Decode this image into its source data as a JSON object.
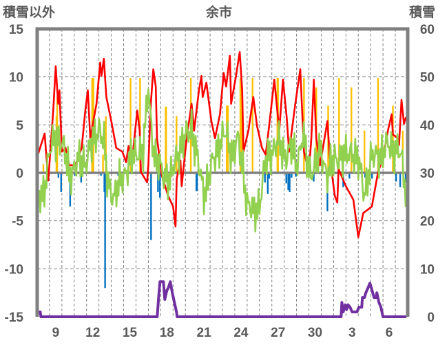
{
  "chart_data": {
    "type": "line",
    "title": "余市",
    "ylabel_left": "積雪以外",
    "ylabel_right": "積雪",
    "ylim_left": [
      -15,
      15
    ],
    "ylim_right": [
      0,
      60
    ],
    "yticks_left": [
      "15",
      "10",
      "5",
      "0",
      "-5",
      "-10",
      "-15"
    ],
    "yticks_left_values": [
      15,
      10,
      5,
      0,
      -5,
      -10,
      -15
    ],
    "yticks_right": [
      "60",
      "50",
      "40",
      "30",
      "20",
      "10",
      "0"
    ],
    "yticks_right_values": [
      60,
      50,
      40,
      30,
      20,
      10,
      0
    ],
    "x_days_span": 30,
    "xticks": [
      {
        "label": "9",
        "day": 1
      },
      {
        "label": "12",
        "day": 4
      },
      {
        "label": "15",
        "day": 7
      },
      {
        "label": "18",
        "day": 10
      },
      {
        "label": "21",
        "day": 13
      },
      {
        "label": "24",
        "day": 16
      },
      {
        "label": "27",
        "day": 19
      },
      {
        "label": "30",
        "day": 22
      },
      {
        "label": "3",
        "day": 25
      },
      {
        "label": "6",
        "day": 28
      }
    ],
    "grid": true,
    "colors": {
      "red": "#ff0000",
      "green": "#92d050",
      "yellow": "#ffc000",
      "blue": "#0070c0",
      "purple": "#7030a0",
      "axis": "#808080",
      "text": "#595959"
    },
    "series": [
      {
        "key": "red",
        "type": "line",
        "axis": "left",
        "color": "#ff0000",
        "points": [
          [
            0.06,
            1.9
          ],
          [
            0.6,
            4.1
          ],
          [
            0.9,
            -0.8
          ],
          [
            1.3,
            6.5
          ],
          [
            1.5,
            11.1
          ],
          [
            1.7,
            7.2
          ],
          [
            1.8,
            8.6
          ],
          [
            2.0,
            2.2
          ],
          [
            2.3,
            2.6
          ],
          [
            2.6,
            0.8
          ],
          [
            3.1,
            0.8
          ],
          [
            3.6,
            2.6
          ],
          [
            3.9,
            6.5
          ],
          [
            4.1,
            8.6
          ],
          [
            4.3,
            3.6
          ],
          [
            4.8,
            7.2
          ],
          [
            5.1,
            11.5
          ],
          [
            5.2,
            10.1
          ],
          [
            5.4,
            11.9
          ],
          [
            5.6,
            7.9
          ],
          [
            6.0,
            5.4
          ],
          [
            6.4,
            2.6
          ],
          [
            6.9,
            2.2
          ],
          [
            7.2,
            1.1
          ],
          [
            7.4,
            2.8
          ],
          [
            7.7,
            1.5
          ],
          [
            8.1,
            6.5
          ],
          [
            8.3,
            4.4
          ],
          [
            8.4,
            0.1
          ],
          [
            8.9,
            -1.0
          ],
          [
            9.0,
            0.8
          ],
          [
            9.2,
            7.2
          ],
          [
            9.4,
            10.8
          ],
          [
            9.6,
            9.0
          ],
          [
            9.7,
            3.6
          ],
          [
            10.1,
            -0.3
          ],
          [
            10.6,
            -2.4
          ],
          [
            11.0,
            -3.5
          ],
          [
            11.2,
            -5.6
          ],
          [
            11.3,
            -0.6
          ],
          [
            11.6,
            1.3
          ],
          [
            11.7,
            -1.4
          ],
          [
            12.1,
            3.6
          ],
          [
            12.5,
            7.2
          ],
          [
            12.7,
            4.4
          ],
          [
            13.1,
            8.6
          ],
          [
            13.3,
            10.1
          ],
          [
            13.4,
            7.9
          ],
          [
            13.7,
            9.4
          ],
          [
            14.1,
            5.4
          ],
          [
            14.4,
            3.6
          ],
          [
            14.8,
            6.1
          ],
          [
            15.1,
            10.4
          ],
          [
            15.3,
            9.0
          ],
          [
            15.6,
            12.2
          ],
          [
            15.7,
            7.2
          ],
          [
            16.1,
            10.1
          ],
          [
            16.4,
            12.6
          ],
          [
            16.6,
            8.6
          ],
          [
            16.7,
            2.2
          ],
          [
            17.1,
            4.4
          ],
          [
            17.5,
            7.9
          ],
          [
            17.8,
            4.9
          ],
          [
            18.2,
            2.6
          ],
          [
            18.5,
            1.9
          ],
          [
            18.8,
            5.1
          ],
          [
            19.2,
            9.7
          ],
          [
            19.6,
            4.4
          ],
          [
            19.9,
            9.7
          ],
          [
            20.2,
            5.8
          ],
          [
            20.4,
            2.2
          ],
          [
            20.9,
            7.2
          ],
          [
            21.3,
            10.8
          ],
          [
            21.6,
            2.2
          ],
          [
            22.0,
            0.1
          ],
          [
            22.2,
            3.6
          ],
          [
            22.4,
            9.7
          ],
          [
            22.6,
            3.6
          ],
          [
            22.9,
            0.8
          ],
          [
            23.5,
            5.4
          ],
          [
            23.7,
            1.5
          ],
          [
            24.1,
            -2.4
          ],
          [
            24.3,
            -3.1
          ],
          [
            24.4,
            0.4
          ],
          [
            25.0,
            -1.4
          ],
          [
            25.6,
            -2.8
          ],
          [
            26.0,
            -6.7
          ],
          [
            26.4,
            -4.2
          ],
          [
            27.1,
            -3.5
          ],
          [
            27.6,
            0.1
          ],
          [
            28.0,
            1.5
          ],
          [
            28.4,
            4.4
          ],
          [
            28.7,
            6.1
          ],
          [
            28.8,
            4.0
          ],
          [
            29.2,
            3.6
          ],
          [
            29.3,
            2.9
          ],
          [
            29.5,
            7.6
          ],
          [
            29.7,
            5.1
          ],
          [
            29.85,
            5.8
          ]
        ]
      },
      {
        "key": "green",
        "type": "line",
        "axis": "left",
        "color": "#92d050",
        "points": [
          [
            0,
            -3
          ],
          [
            0.5,
            -2
          ],
          [
            1,
            2
          ],
          [
            1.6,
            4
          ],
          [
            2,
            3
          ],
          [
            2.6,
            0
          ],
          [
            3.3,
            1
          ],
          [
            4,
            1.5
          ],
          [
            4.5,
            3
          ],
          [
            5,
            5
          ],
          [
            5.4,
            3
          ],
          [
            5.7,
            -1
          ],
          [
            6.3,
            -2.5
          ],
          [
            7,
            0
          ],
          [
            7.5,
            1
          ],
          [
            8.2,
            2.5
          ],
          [
            8.6,
            2
          ],
          [
            9.0,
            9
          ],
          [
            9.3,
            4
          ],
          [
            9.6,
            1
          ],
          [
            10.3,
            0
          ],
          [
            10.8,
            -1
          ],
          [
            11.3,
            2
          ],
          [
            12,
            3.5
          ],
          [
            12.5,
            5
          ],
          [
            13,
            1
          ],
          [
            13.5,
            -2
          ],
          [
            14,
            0
          ],
          [
            14.7,
            3
          ],
          [
            15.2,
            4
          ],
          [
            15.8,
            2
          ],
          [
            16.2,
            3.5
          ],
          [
            16.7,
            0
          ],
          [
            17,
            -3
          ],
          [
            17.5,
            -4.5
          ],
          [
            18,
            -3
          ],
          [
            18.5,
            1
          ],
          [
            19,
            2.5
          ],
          [
            19.5,
            3
          ],
          [
            20,
            2
          ],
          [
            20.6,
            2.5
          ],
          [
            21,
            1
          ],
          [
            21.5,
            4
          ],
          [
            22,
            0
          ],
          [
            22.5,
            1
          ],
          [
            23,
            2
          ],
          [
            23.5,
            0
          ],
          [
            24,
            1
          ],
          [
            24.5,
            2
          ],
          [
            25,
            1.5
          ],
          [
            25.5,
            2.5
          ],
          [
            26,
            1
          ],
          [
            26.5,
            -2
          ],
          [
            27,
            1
          ],
          [
            27.5,
            2
          ],
          [
            28,
            2
          ],
          [
            28.5,
            3
          ],
          [
            29,
            2.5
          ],
          [
            29.5,
            1.5
          ],
          [
            29.9,
            -2
          ]
        ]
      },
      {
        "key": "yellow",
        "type": "bar",
        "axis": "left",
        "color": "#ffc000",
        "points": [
          [
            0.5,
            0.9
          ],
          [
            1.56,
            5.9
          ],
          [
            1.62,
            7.9
          ],
          [
            4.45,
            9.9
          ],
          [
            4.5,
            9.9
          ],
          [
            4.55,
            9.9
          ],
          [
            5.33,
            1.9
          ],
          [
            5.56,
            5.9
          ],
          [
            7.56,
            9.9
          ],
          [
            8.33,
            9.9
          ],
          [
            10.4,
            6.9
          ],
          [
            10.44,
            6.9
          ],
          [
            11.28,
            5.9
          ],
          [
            12.44,
            9.9
          ],
          [
            15.35,
            7.0
          ],
          [
            15.44,
            7.0
          ],
          [
            16.45,
            9.9
          ],
          [
            16.5,
            9.9
          ],
          [
            16.55,
            9.9
          ],
          [
            17.44,
            9.9
          ],
          [
            19.45,
            9.9
          ],
          [
            19.5,
            9.9
          ],
          [
            21.6,
            9.9
          ],
          [
            22.6,
            8.9
          ],
          [
            23.56,
            7.0
          ],
          [
            24.44,
            9.9
          ],
          [
            25.44,
            8.9
          ],
          [
            26.5,
            4.4
          ],
          [
            27.6,
            9.9
          ],
          [
            28.8,
            7.0
          ],
          [
            29.6,
            4.4
          ]
        ]
      },
      {
        "key": "blue",
        "type": "bar",
        "axis": "left",
        "color": "#0070c0",
        "points": [
          [
            1.72,
            -0.5
          ],
          [
            1.94,
            -2
          ],
          [
            2.67,
            -3.5
          ],
          [
            3.06,
            -0.3
          ],
          [
            3.56,
            -1
          ],
          [
            5.17,
            -0.3
          ],
          [
            5.44,
            -2
          ],
          [
            5.5,
            -12
          ],
          [
            6.56,
            -0.3
          ],
          [
            9.22,
            -7
          ],
          [
            9.78,
            -2
          ],
          [
            9.94,
            -2.6
          ],
          [
            10.1,
            -0.3
          ],
          [
            10.5,
            -0.5
          ],
          [
            10.78,
            -1
          ],
          [
            12.89,
            -1.9
          ],
          [
            12.94,
            -1.9
          ],
          [
            18.44,
            -1
          ],
          [
            18.67,
            -2.2
          ],
          [
            18.78,
            -0.6
          ],
          [
            20.17,
            -1.1
          ],
          [
            20.33,
            -1.8
          ],
          [
            20.44,
            -2
          ],
          [
            20.6,
            -0.5
          ],
          [
            20.94,
            -0.4
          ],
          [
            22.39,
            -0.9
          ],
          [
            23.5,
            -4
          ],
          [
            24.78,
            -1.5
          ],
          [
            25.28,
            -0.6
          ],
          [
            26.56,
            -0.5
          ],
          [
            27.11,
            -0.6
          ],
          [
            29.06,
            -0.9
          ],
          [
            29.39,
            -1.5
          ],
          [
            29.83,
            -1
          ]
        ]
      },
      {
        "key": "purple",
        "type": "line",
        "axis": "right",
        "color": "#7030a0",
        "points": [
          [
            0,
            1
          ],
          [
            0.25,
            1
          ],
          [
            0.3,
            0
          ],
          [
            8.55,
            0
          ],
          [
            8.8,
            0
          ],
          [
            9.72,
            0
          ],
          [
            9.83,
            4
          ],
          [
            9.94,
            7.3
          ],
          [
            10.22,
            7.3
          ],
          [
            10.33,
            3.6
          ],
          [
            10.5,
            5.5
          ],
          [
            10.61,
            6
          ],
          [
            10.78,
            7.3
          ],
          [
            10.94,
            5
          ],
          [
            11.11,
            3
          ],
          [
            11.28,
            1
          ],
          [
            11.33,
            0
          ],
          [
            24.61,
            0
          ],
          [
            24.67,
            3
          ],
          [
            24.78,
            1
          ],
          [
            24.94,
            2.5
          ],
          [
            25.06,
            1.5
          ],
          [
            25.17,
            2.5
          ],
          [
            25.33,
            2
          ],
          [
            25.5,
            1
          ],
          [
            25.89,
            1
          ],
          [
            26.06,
            2
          ],
          [
            26.28,
            2
          ],
          [
            26.33,
            4
          ],
          [
            26.5,
            4
          ],
          [
            26.61,
            5
          ],
          [
            26.78,
            6
          ],
          [
            26.94,
            7
          ],
          [
            27.06,
            6
          ],
          [
            27.17,
            5
          ],
          [
            27.28,
            4
          ],
          [
            27.44,
            4
          ],
          [
            27.5,
            5
          ],
          [
            27.67,
            3
          ],
          [
            27.83,
            2
          ],
          [
            28.0,
            0
          ],
          [
            29.9,
            0
          ]
        ]
      }
    ]
  }
}
